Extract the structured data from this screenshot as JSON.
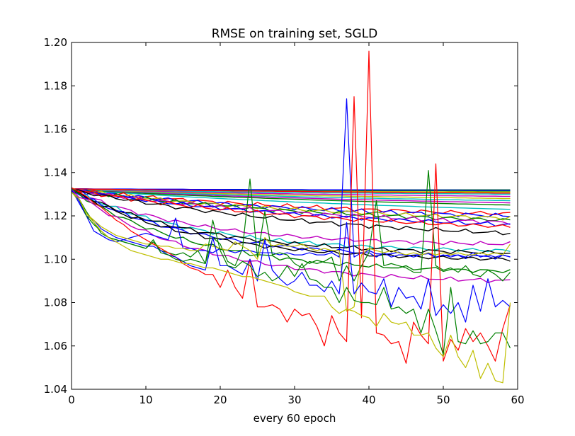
{
  "chart_data": {
    "type": "line",
    "title": "RMSE on training set, SGLD",
    "xlabel": "every 60 epoch",
    "ylabel": "",
    "xlim": [
      0,
      60
    ],
    "ylim": [
      1.04,
      1.2
    ],
    "xticks": [
      0,
      10,
      20,
      30,
      40,
      50,
      60
    ],
    "yticks": [
      1.04,
      1.06,
      1.08,
      1.1,
      1.12,
      1.14,
      1.16,
      1.18,
      1.2
    ],
    "xtick_labels": [
      "0",
      "10",
      "20",
      "30",
      "40",
      "50",
      "60"
    ],
    "ytick_labels": [
      "1.04",
      "1.06",
      "1.08",
      "1.10",
      "1.12",
      "1.14",
      "1.16",
      "1.18",
      "1.20"
    ],
    "grid": false,
    "legend": "none",
    "num_points": 60,
    "series": [
      {
        "color": "#008000",
        "start": 1.132,
        "end": 1.132,
        "curve": "flat"
      },
      {
        "color": "#008000",
        "start": 1.132,
        "end": 1.1315,
        "curve": "flat"
      },
      {
        "color": "#bfbf00",
        "start": 1.132,
        "end": 1.131,
        "curve": "flat"
      },
      {
        "color": "#0000ff",
        "start": 1.1325,
        "end": 1.1318,
        "curve": "flat"
      },
      {
        "color": "#ff0000",
        "start": 1.1325,
        "end": 1.1305,
        "curve": "flat"
      },
      {
        "color": "#00bfbf",
        "start": 1.132,
        "end": 1.13,
        "curve": "flat"
      },
      {
        "color": "#bf00bf",
        "start": 1.132,
        "end": 1.129,
        "curve": "flat"
      },
      {
        "color": "#bfbf00",
        "start": 1.132,
        "end": 1.128,
        "curve": "flat"
      },
      {
        "color": "#00bfbf",
        "start": 1.132,
        "end": 1.127,
        "curve": "flat"
      },
      {
        "color": "#bf00bf",
        "start": 1.132,
        "end": 1.126,
        "curve": "flat"
      },
      {
        "color": "#008000",
        "start": 1.132,
        "end": 1.125,
        "curve": "flat"
      },
      {
        "color": "#00bfbf",
        "start": 1.132,
        "end": 1.123,
        "curve": "flat"
      },
      {
        "color": "#ff0000",
        "start": 1.132,
        "end": 1.121,
        "curve": "slow"
      },
      {
        "color": "#0000ff",
        "start": 1.132,
        "end": 1.12,
        "curve": "slow"
      },
      {
        "color": "#bfbf00",
        "start": 1.132,
        "end": 1.119,
        "curve": "slow"
      },
      {
        "color": "#008000",
        "start": 1.132,
        "end": 1.118,
        "curve": "slow"
      },
      {
        "color": "#bf00bf",
        "start": 1.132,
        "end": 1.117,
        "curve": "slow"
      },
      {
        "color": "#0000ff",
        "start": 1.132,
        "end": 1.116,
        "curve": "slow"
      },
      {
        "color": "#ff0000",
        "start": 1.132,
        "end": 1.115,
        "curve": "slow"
      },
      {
        "color": "#000000",
        "start": 1.132,
        "end": 1.112,
        "curve": "slow"
      },
      {
        "color": "#bf00bf",
        "start": 1.132,
        "end": 1.107,
        "curve": "mid"
      },
      {
        "color": "#00bfbf",
        "start": 1.132,
        "end": 1.104,
        "curve": "mid"
      },
      {
        "color": "#000000",
        "start": 1.132,
        "end": 1.103,
        "curve": "mid"
      },
      {
        "color": "#0000ff",
        "start": 1.132,
        "end": 1.101,
        "curve": "mid"
      },
      {
        "color": "#000000",
        "start": 1.132,
        "end": 1.1,
        "curve": "mid"
      },
      {
        "color": "#008000",
        "start": 1.132,
        "end": 1.0945,
        "curve": "mid"
      },
      {
        "color": "#bf00bf",
        "start": 1.132,
        "end": 1.09,
        "curve": "mid"
      },
      {
        "color": "#0000ff",
        "values": [
          1.132,
          1.126,
          1.12,
          1.118,
          1.114,
          1.112,
          1.11,
          1.109,
          1.11,
          1.111,
          1.112,
          1.111,
          1.11,
          1.109,
          1.119,
          1.105,
          1.105,
          1.104,
          1.104,
          1.103,
          1.105,
          1.104,
          1.103,
          1.104,
          1.104,
          1.103,
          1.103,
          1.103,
          1.102,
          1.103,
          1.102,
          1.102,
          1.103,
          1.102,
          1.102,
          1.103,
          1.101,
          1.174,
          1.101,
          1.103,
          1.103,
          1.101,
          1.103,
          1.101,
          1.102,
          1.102,
          1.101,
          1.102,
          1.103,
          1.101,
          1.102,
          1.101,
          1.102,
          1.101,
          1.103,
          1.101,
          1.102,
          1.101,
          1.102,
          1.101
        ]
      },
      {
        "color": "#008000",
        "values": [
          1.131,
          1.128,
          1.122,
          1.117,
          1.112,
          1.11,
          1.109,
          1.108,
          1.107,
          1.106,
          1.105,
          1.108,
          1.104,
          1.103,
          1.102,
          1.103,
          1.101,
          1.104,
          1.098,
          1.11,
          1.107,
          1.099,
          1.097,
          1.105,
          1.137,
          1.101,
          1.122,
          1.102,
          1.103,
          1.102,
          1.098,
          1.096,
          1.099,
          1.098,
          1.099,
          1.101,
          1.09,
          1.097,
          1.09,
          1.097,
          1.103,
          1.127,
          1.097,
          1.098,
          1.097,
          1.096,
          1.094,
          1.094,
          1.141,
          1.097,
          1.095,
          1.096,
          1.094,
          1.097,
          1.093,
          1.092,
          1.095,
          1.093,
          1.09,
          1.094
        ]
      },
      {
        "color": "#bfbf00",
        "values": [
          1.131,
          1.127,
          1.121,
          1.118,
          1.115,
          1.113,
          1.111,
          1.11,
          1.109,
          1.108,
          1.107,
          1.107,
          1.106,
          1.106,
          1.105,
          1.105,
          1.104,
          1.104,
          1.107,
          1.106,
          1.105,
          1.104,
          1.108,
          1.106,
          1.104,
          1.1,
          1.11,
          1.106,
          1.107,
          1.106,
          1.106,
          1.107,
          1.105,
          1.104,
          1.105,
          1.104,
          1.104,
          1.076,
          1.078,
          1.102,
          1.105,
          1.104,
          1.103,
          1.104,
          1.103,
          1.102,
          1.103,
          1.102,
          1.103,
          1.102,
          1.103,
          1.102,
          1.103,
          1.102,
          1.102,
          1.103,
          1.102,
          1.103,
          1.102,
          1.107
        ]
      },
      {
        "color": "#ff0000",
        "values": [
          1.133,
          1.131,
          1.129,
          1.126,
          1.124,
          1.121,
          1.118,
          1.116,
          1.113,
          1.111,
          1.109,
          1.107,
          1.105,
          1.103,
          1.101,
          1.098,
          1.096,
          1.095,
          1.093,
          1.093,
          1.087,
          1.095,
          1.087,
          1.082,
          1.1,
          1.078,
          1.078,
          1.079,
          1.077,
          1.071,
          1.077,
          1.074,
          1.075,
          1.069,
          1.06,
          1.074,
          1.066,
          1.062,
          1.175,
          1.073,
          1.196,
          1.066,
          1.065,
          1.061,
          1.062,
          1.052,
          1.071,
          1.065,
          1.061,
          1.144,
          1.053,
          1.063,
          1.058,
          1.068,
          1.062,
          1.066,
          1.06,
          1.053,
          1.068,
          1.079
        ]
      },
      {
        "color": "#0000ff",
        "values": [
          1.132,
          1.127,
          1.12,
          1.113,
          1.111,
          1.109,
          1.108,
          1.109,
          1.108,
          1.107,
          1.106,
          1.106,
          1.104,
          1.102,
          1.101,
          1.099,
          1.097,
          1.096,
          1.095,
          1.11,
          1.097,
          1.097,
          1.095,
          1.093,
          1.1,
          1.09,
          1.109,
          1.095,
          1.091,
          1.088,
          1.09,
          1.094,
          1.088,
          1.088,
          1.085,
          1.09,
          1.084,
          1.117,
          1.084,
          1.089,
          1.085,
          1.084,
          1.091,
          1.078,
          1.087,
          1.082,
          1.083,
          1.077,
          1.091,
          1.074,
          1.079,
          1.075,
          1.08,
          1.071,
          1.088,
          1.076,
          1.091,
          1.078,
          1.081,
          1.078
        ]
      },
      {
        "color": "#008000",
        "values": [
          1.131,
          1.128,
          1.12,
          1.116,
          1.113,
          1.11,
          1.109,
          1.108,
          1.107,
          1.106,
          1.105,
          1.109,
          1.103,
          1.102,
          1.1,
          1.099,
          1.1,
          1.099,
          1.098,
          1.118,
          1.104,
          1.097,
          1.096,
          1.099,
          1.097,
          1.092,
          1.094,
          1.09,
          1.092,
          1.097,
          1.092,
          1.098,
          1.091,
          1.09,
          1.087,
          1.087,
          1.08,
          1.087,
          1.081,
          1.08,
          1.08,
          1.079,
          1.087,
          1.077,
          1.078,
          1.075,
          1.077,
          1.066,
          1.077,
          1.067,
          1.056,
          1.087,
          1.062,
          1.061,
          1.067,
          1.061,
          1.062,
          1.066,
          1.066,
          1.059
        ]
      },
      {
        "color": "#bfbf00",
        "values": [
          1.131,
          1.128,
          1.121,
          1.117,
          1.113,
          1.11,
          1.108,
          1.106,
          1.104,
          1.103,
          1.102,
          1.101,
          1.1,
          1.1,
          1.099,
          1.098,
          1.098,
          1.097,
          1.096,
          1.096,
          1.095,
          1.094,
          1.093,
          1.092,
          1.092,
          1.091,
          1.09,
          1.089,
          1.088,
          1.087,
          1.085,
          1.084,
          1.083,
          1.083,
          1.083,
          1.078,
          1.075,
          1.077,
          1.076,
          1.074,
          1.073,
          1.069,
          1.075,
          1.071,
          1.07,
          1.071,
          1.065,
          1.065,
          1.066,
          1.059,
          1.055,
          1.065,
          1.055,
          1.05,
          1.058,
          1.045,
          1.052,
          1.044,
          1.043,
          1.08
        ]
      }
    ]
  }
}
